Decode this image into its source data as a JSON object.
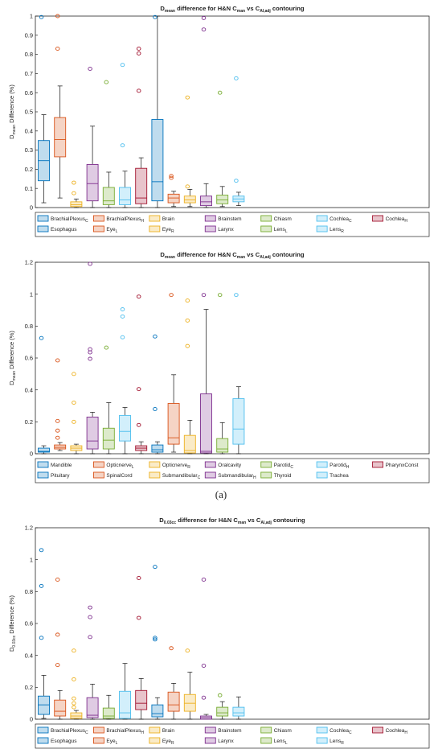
{
  "sublabel": "(a)",
  "chart_data": [
    {
      "type": "box",
      "title": [
        {
          "t": "D"
        },
        {
          "t": "mean",
          "s": 1
        },
        {
          "t": " difference for H&N C"
        },
        {
          "t": "man",
          "s": 1
        },
        {
          "t": " vs C"
        },
        {
          "t": "AI,adj",
          "s": 1
        },
        {
          "t": " contouring"
        }
      ],
      "ylabel": [
        {
          "t": "D"
        },
        {
          "t": "mean",
          "s": 1
        },
        {
          "t": " Difference (%)"
        }
      ],
      "ylim": [
        0,
        1
      ],
      "yticks": [
        "0",
        "0.1",
        "0.2",
        "0.3",
        "0.4",
        "0.5",
        "0.6",
        "0.7",
        "0.8",
        "0.9",
        "1"
      ],
      "ntick": 11,
      "grid": false,
      "legend_position": "bottom",
      "series": [
        {
          "label": [
            {
              "t": "BrachialPlexus"
            },
            {
              "t": "C",
              "s": 1
            }
          ],
          "color": "#0072BD",
          "min": 0.025,
          "q1": 0.14,
          "median": 0.245,
          "q3": 0.35,
          "max": 0.485,
          "outliers": [
            0.995
          ]
        },
        {
          "label": [
            {
              "t": "BrachialPlexus"
            },
            {
              "t": "H",
              "s": 1
            }
          ],
          "color": "#D95319",
          "min": 0.05,
          "q1": 0.265,
          "median": 0.355,
          "q3": 0.47,
          "max": 0.635,
          "outliers": [
            0.83,
            1.0
          ]
        },
        {
          "label": [
            {
              "t": "Brain"
            }
          ],
          "color": "#EDB120",
          "min": 0.0,
          "q1": 0.005,
          "median": 0.015,
          "q3": 0.03,
          "max": 0.045,
          "outliers": [
            0.075,
            0.13
          ]
        },
        {
          "label": [
            {
              "t": "Brainstem"
            }
          ],
          "color": "#7E2F8E",
          "min": 0.0,
          "q1": 0.035,
          "median": 0.125,
          "q3": 0.225,
          "max": 0.425,
          "outliers": [
            0.725
          ]
        },
        {
          "label": [
            {
              "t": "Chiasm"
            }
          ],
          "color": "#77AC30",
          "min": 0.0,
          "q1": 0.015,
          "median": 0.035,
          "q3": 0.105,
          "max": 0.185,
          "outliers": [
            0.655
          ]
        },
        {
          "label": [
            {
              "t": "Cochlea"
            },
            {
              "t": "C",
              "s": 1
            }
          ],
          "color": "#4DBEEE",
          "min": 0.0,
          "q1": 0.015,
          "median": 0.04,
          "q3": 0.105,
          "max": 0.19,
          "outliers": [
            0.325,
            0.745
          ]
        },
        {
          "label": [
            {
              "t": "Cochlea"
            },
            {
              "t": "H",
              "s": 1
            }
          ],
          "color": "#A2142F",
          "min": 0.0,
          "q1": 0.02,
          "median": 0.05,
          "q3": 0.205,
          "max": 0.26,
          "outliers": [
            0.61,
            0.805,
            0.83
          ]
        },
        {
          "label": [
            {
              "t": "Esophagus"
            }
          ],
          "color": "#0072BD",
          "min": 0.0,
          "q1": 0.035,
          "median": 0.135,
          "q3": 0.46,
          "max": 1.0,
          "outliers": [
            0.995
          ]
        },
        {
          "label": [
            {
              "t": "Eye"
            },
            {
              "t": "L",
              "s": 1
            }
          ],
          "color": "#D95319",
          "min": 0.005,
          "q1": 0.025,
          "median": 0.05,
          "q3": 0.07,
          "max": 0.085,
          "outliers": [
            0.155,
            0.165
          ]
        },
        {
          "label": [
            {
              "t": "Eye"
            },
            {
              "t": "R",
              "s": 1
            }
          ],
          "color": "#EDB120",
          "min": 0.005,
          "q1": 0.025,
          "median": 0.04,
          "q3": 0.06,
          "max": 0.095,
          "outliers": [
            0.11,
            0.575
          ]
        },
        {
          "label": [
            {
              "t": "Larynx"
            }
          ],
          "color": "#7E2F8E",
          "min": 0.0,
          "q1": 0.01,
          "median": 0.03,
          "q3": 0.06,
          "max": 0.125,
          "outliers": [
            0.93,
            0.99
          ]
        },
        {
          "label": [
            {
              "t": "Lens"
            },
            {
              "t": "L",
              "s": 1
            }
          ],
          "color": "#77AC30",
          "min": 0.005,
          "q1": 0.02,
          "median": 0.04,
          "q3": 0.065,
          "max": 0.11,
          "outliers": [
            0.6
          ]
        },
        {
          "label": [
            {
              "t": "Lens"
            },
            {
              "t": "R",
              "s": 1
            }
          ],
          "color": "#4DBEEE",
          "min": 0.01,
          "q1": 0.03,
          "median": 0.045,
          "q3": 0.06,
          "max": 0.08,
          "outliers": [
            0.14,
            0.675
          ]
        }
      ]
    },
    {
      "type": "box",
      "title": [
        {
          "t": "D"
        },
        {
          "t": "mean",
          "s": 1
        },
        {
          "t": " difference for H&N C"
        },
        {
          "t": "man",
          "s": 1
        },
        {
          "t": " vs C"
        },
        {
          "t": "AI,adj",
          "s": 1
        },
        {
          "t": " contouring"
        }
      ],
      "ylabel": [
        {
          "t": "D"
        },
        {
          "t": "mean",
          "s": 1
        },
        {
          "t": " Difference (%)"
        }
      ],
      "ylim": [
        0,
        1.2
      ],
      "yticks": [
        "0",
        "0.2",
        "0.4",
        "0.6",
        "0.8",
        "1",
        "1.2"
      ],
      "ntick": 7,
      "grid": false,
      "legend_position": "bottom",
      "series": [
        {
          "label": [
            {
              "t": "Mandible"
            }
          ],
          "color": "#0072BD",
          "min": 0.0,
          "q1": 0.01,
          "median": 0.015,
          "q3": 0.035,
          "max": 0.05,
          "outliers": [
            0.725
          ]
        },
        {
          "label": [
            {
              "t": "Opticnerve"
            },
            {
              "t": "L",
              "s": 1
            }
          ],
          "color": "#D95319",
          "min": 0.02,
          "q1": 0.03,
          "median": 0.04,
          "q3": 0.055,
          "max": 0.07,
          "outliers": [
            0.1,
            0.145,
            0.205,
            0.585
          ]
        },
        {
          "label": [
            {
              "t": "Opticnerve"
            },
            {
              "t": "R",
              "s": 1
            }
          ],
          "color": "#EDB120",
          "min": 0.0,
          "q1": 0.02,
          "median": 0.035,
          "q3": 0.05,
          "max": 0.06,
          "outliers": [
            0.2,
            0.32,
            0.5
          ]
        },
        {
          "label": [
            {
              "t": "Oralcavity"
            }
          ],
          "color": "#7E2F8E",
          "min": 0.0,
          "q1": 0.03,
          "median": 0.08,
          "q3": 0.23,
          "max": 0.26,
          "outliers": [
            0.595,
            0.635,
            0.655,
            1.19
          ]
        },
        {
          "label": [
            {
              "t": "Parotid"
            },
            {
              "t": "C",
              "s": 1
            }
          ],
          "color": "#77AC30",
          "min": 0.0,
          "q1": 0.03,
          "median": 0.085,
          "q3": 0.16,
          "max": 0.32,
          "outliers": [
            0.665
          ]
        },
        {
          "label": [
            {
              "t": "Parotid"
            },
            {
              "t": "H",
              "s": 1
            }
          ],
          "color": "#4DBEEE",
          "min": 0.0,
          "q1": 0.08,
          "median": 0.14,
          "q3": 0.24,
          "max": 0.29,
          "outliers": [
            0.73,
            0.86,
            0.905
          ]
        },
        {
          "label": [
            {
              "t": "PharynxConst"
            }
          ],
          "color": "#A2142F",
          "min": 0.0,
          "q1": 0.02,
          "median": 0.035,
          "q3": 0.05,
          "max": 0.075,
          "outliers": [
            0.18,
            0.405,
            0.985
          ]
        },
        {
          "label": [
            {
              "t": "Pituitary"
            }
          ],
          "color": "#0072BD",
          "min": 0.0,
          "q1": 0.01,
          "median": 0.025,
          "q3": 0.055,
          "max": 0.075,
          "outliers": [
            0.28,
            0.735
          ]
        },
        {
          "label": [
            {
              "t": "SpinalCord"
            }
          ],
          "color": "#D95319",
          "min": 0.01,
          "q1": 0.06,
          "median": 0.1,
          "q3": 0.315,
          "max": 0.495,
          "outliers": [
            0.995
          ]
        },
        {
          "label": [
            {
              "t": "Submandibular"
            },
            {
              "t": "C",
              "s": 1
            }
          ],
          "color": "#EDB120",
          "min": 0.0,
          "q1": 0.005,
          "median": 0.02,
          "q3": 0.115,
          "max": 0.21,
          "outliers": [
            0.675,
            0.835,
            0.96
          ]
        },
        {
          "label": [
            {
              "t": "Submandibular"
            },
            {
              "t": "H",
              "s": 1
            }
          ],
          "color": "#7E2F8E",
          "min": 0.0,
          "q1": 0.005,
          "median": 0.015,
          "q3": 0.375,
          "max": 0.905,
          "outliers": [
            0.995
          ]
        },
        {
          "label": [
            {
              "t": "Thyroid"
            }
          ],
          "color": "#77AC30",
          "min": 0.0,
          "q1": 0.01,
          "median": 0.03,
          "q3": 0.095,
          "max": 0.195,
          "outliers": [
            0.995
          ]
        },
        {
          "label": [
            {
              "t": "Trachea"
            }
          ],
          "color": "#4DBEEE",
          "min": 0.0,
          "q1": 0.06,
          "median": 0.155,
          "q3": 0.345,
          "max": 0.42,
          "outliers": [
            0.995
          ]
        }
      ]
    },
    {
      "type": "box",
      "title": [
        {
          "t": "D"
        },
        {
          "t": "0.03cc",
          "s": 1
        },
        {
          "t": " difference for H&N C"
        },
        {
          "t": "man",
          "s": 1
        },
        {
          "t": " vs C"
        },
        {
          "t": "AI,adj",
          "s": 1
        },
        {
          "t": " contouring"
        }
      ],
      "ylabel": [
        {
          "t": "D"
        },
        {
          "t": "0.03cc",
          "s": 1
        },
        {
          "t": " Difference (%)"
        }
      ],
      "ylim": [
        0,
        1.2
      ],
      "yticks": [
        "0",
        "0.2",
        "0.4",
        "0.6",
        "0.8",
        "1",
        "1.2"
      ],
      "ntick": 7,
      "grid": false,
      "legend_position": "bottom",
      "series": [
        {
          "label": [
            {
              "t": "BrachialPlexus"
            },
            {
              "t": "C",
              "s": 1
            }
          ],
          "color": "#0072BD",
          "min": 0.005,
          "q1": 0.03,
          "median": 0.09,
          "q3": 0.145,
          "max": 0.275,
          "outliers": [
            0.51,
            0.835,
            1.06
          ]
        },
        {
          "label": [
            {
              "t": "BrachialPlexus"
            },
            {
              "t": "H",
              "s": 1
            }
          ],
          "color": "#D95319",
          "min": 0.0,
          "q1": 0.02,
          "median": 0.05,
          "q3": 0.12,
          "max": 0.18,
          "outliers": [
            0.34,
            0.53,
            0.875
          ]
        },
        {
          "label": [
            {
              "t": "Brain"
            }
          ],
          "color": "#EDB120",
          "min": 0.0,
          "q1": 0.005,
          "median": 0.02,
          "q3": 0.04,
          "max": 0.055,
          "outliers": [
            0.075,
            0.1,
            0.13,
            0.25,
            0.43
          ]
        },
        {
          "label": [
            {
              "t": "Brainstem"
            }
          ],
          "color": "#7E2F8E",
          "min": 0.0,
          "q1": 0.01,
          "median": 0.025,
          "q3": 0.135,
          "max": 0.22,
          "outliers": [
            0.515,
            0.64,
            0.7
          ]
        },
        {
          "label": [
            {
              "t": "Chiasm"
            }
          ],
          "color": "#77AC30",
          "min": 0.0,
          "q1": 0.005,
          "median": 0.02,
          "q3": 0.07,
          "max": 0.15,
          "outliers": []
        },
        {
          "label": [
            {
              "t": "Cochlea"
            },
            {
              "t": "C",
              "s": 1
            }
          ],
          "color": "#4DBEEE",
          "min": 0.0,
          "q1": 0.005,
          "median": 0.04,
          "q3": 0.175,
          "max": 0.35,
          "outliers": []
        },
        {
          "label": [
            {
              "t": "Cochlea"
            },
            {
              "t": "H",
              "s": 1
            }
          ],
          "color": "#A2142F",
          "min": 0.0,
          "q1": 0.06,
          "median": 0.1,
          "q3": 0.18,
          "max": 0.255,
          "outliers": [
            0.635,
            0.885
          ]
        },
        {
          "label": [
            {
              "t": "Esophagus"
            }
          ],
          "color": "#0072BD",
          "min": 0.0,
          "q1": 0.015,
          "median": 0.035,
          "q3": 0.09,
          "max": 0.135,
          "outliers": [
            0.5,
            0.51,
            0.955
          ]
        },
        {
          "label": [
            {
              "t": "Eye"
            },
            {
              "t": "L",
              "s": 1
            }
          ],
          "color": "#D95319",
          "min": 0.0,
          "q1": 0.05,
          "median": 0.09,
          "q3": 0.17,
          "max": 0.225,
          "outliers": [
            0.445
          ]
        },
        {
          "label": [
            {
              "t": "Eye"
            },
            {
              "t": "R",
              "s": 1
            }
          ],
          "color": "#EDB120",
          "min": 0.0,
          "q1": 0.05,
          "median": 0.1,
          "q3": 0.155,
          "max": 0.295,
          "outliers": [
            0.43
          ]
        },
        {
          "label": [
            {
              "t": "Larynx"
            }
          ],
          "color": "#7E2F8E",
          "min": 0.0,
          "q1": 0.0,
          "median": 0.01,
          "q3": 0.02,
          "max": 0.03,
          "outliers": [
            0.135,
            0.335,
            0.875
          ]
        },
        {
          "label": [
            {
              "t": "Lens"
            },
            {
              "t": "L",
              "s": 1
            }
          ],
          "color": "#77AC30",
          "min": 0.0,
          "q1": 0.02,
          "median": 0.04,
          "q3": 0.075,
          "max": 0.11,
          "outliers": [
            0.15
          ]
        },
        {
          "label": [
            {
              "t": "Lens"
            },
            {
              "t": "R",
              "s": 1
            }
          ],
          "color": "#4DBEEE",
          "min": 0.0,
          "q1": 0.02,
          "median": 0.04,
          "q3": 0.075,
          "max": 0.14,
          "outliers": []
        }
      ]
    }
  ]
}
